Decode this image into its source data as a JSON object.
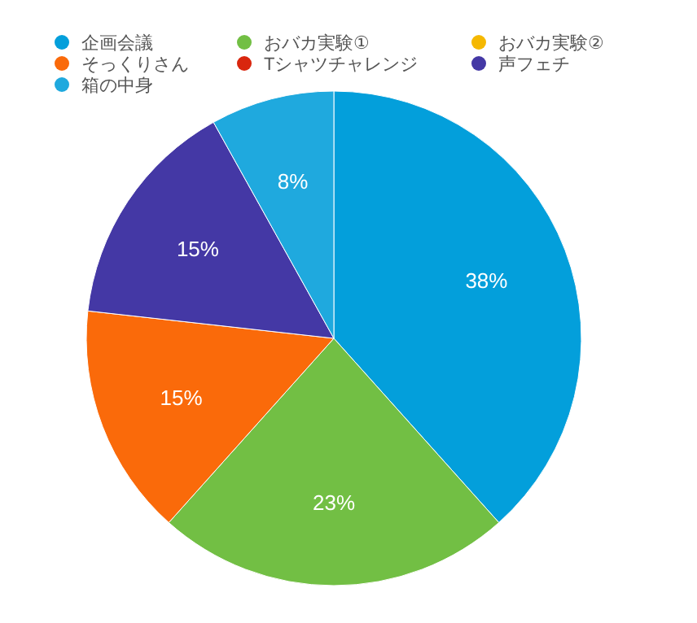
{
  "chart_data": {
    "type": "pie",
    "categories": [
      "企画会議",
      "おバカ実験①",
      "おバカ実験②",
      "そっくりさん",
      "Tシャツチャレンジ",
      "声フェチ",
      "箱の中身"
    ],
    "values": [
      38,
      23,
      0,
      15,
      0,
      15,
      8
    ],
    "colors": [
      "#039fdb",
      "#72bf44",
      "#f5b800",
      "#fa6a0a",
      "#d9260e",
      "#4438a5",
      "#1fa9de"
    ],
    "value_labels": [
      "38%",
      "23%",
      null,
      "15%",
      null,
      "15%",
      "8%"
    ],
    "legend": "top"
  }
}
